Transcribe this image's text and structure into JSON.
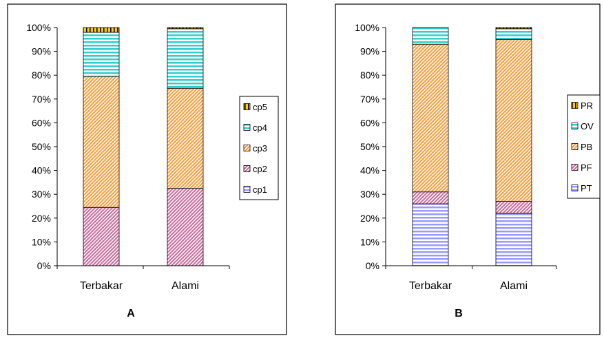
{
  "chart_data": [
    {
      "type": "bar",
      "stacked": true,
      "percent": true,
      "title": "A",
      "categories": [
        "Terbakar",
        "Alami"
      ],
      "ylim": [
        0,
        100
      ],
      "yticks": [
        "0%",
        "10%",
        "20%",
        "30%",
        "40%",
        "50%",
        "60%",
        "70%",
        "80%",
        "90%",
        "100%"
      ],
      "legend_position": "right",
      "series": [
        {
          "name": "cp1",
          "values": [
            0,
            0
          ],
          "color": "#9999ff",
          "pattern": "horizontal"
        },
        {
          "name": "cp2",
          "values": [
            24.5,
            32.5
          ],
          "color": "#cc6699",
          "pattern": "diagonal"
        },
        {
          "name": "cp3",
          "values": [
            55,
            42
          ],
          "color": "#ff9933",
          "pattern": "diagonal"
        },
        {
          "name": "cp4",
          "values": [
            18.5,
            25
          ],
          "color": "#33cccc",
          "pattern": "horizontal"
        },
        {
          "name": "cp5",
          "values": [
            2,
            0.5
          ],
          "color": "#ffcc00",
          "pattern": "vertical"
        }
      ]
    },
    {
      "type": "bar",
      "stacked": true,
      "percent": true,
      "title": "B",
      "categories": [
        "Terbakar",
        "Alami"
      ],
      "ylim": [
        0,
        100
      ],
      "yticks": [
        "0%",
        "10%",
        "20%",
        "30%",
        "40%",
        "50%",
        "60%",
        "70%",
        "80%",
        "90%",
        "100%"
      ],
      "legend_position": "right",
      "series": [
        {
          "name": "PT",
          "values": [
            26,
            22
          ],
          "color": "#9999ff",
          "pattern": "horizontal"
        },
        {
          "name": "PF",
          "values": [
            5,
            5
          ],
          "color": "#cc6699",
          "pattern": "diagonal"
        },
        {
          "name": "PB",
          "values": [
            62,
            68
          ],
          "color": "#ff9933",
          "pattern": "diagonal"
        },
        {
          "name": "OV",
          "values": [
            7,
            4.5
          ],
          "color": "#33cccc",
          "pattern": "horizontal"
        },
        {
          "name": "PR",
          "values": [
            0,
            0.5
          ],
          "color": "#ffcc00",
          "pattern": "vertical"
        }
      ]
    }
  ]
}
